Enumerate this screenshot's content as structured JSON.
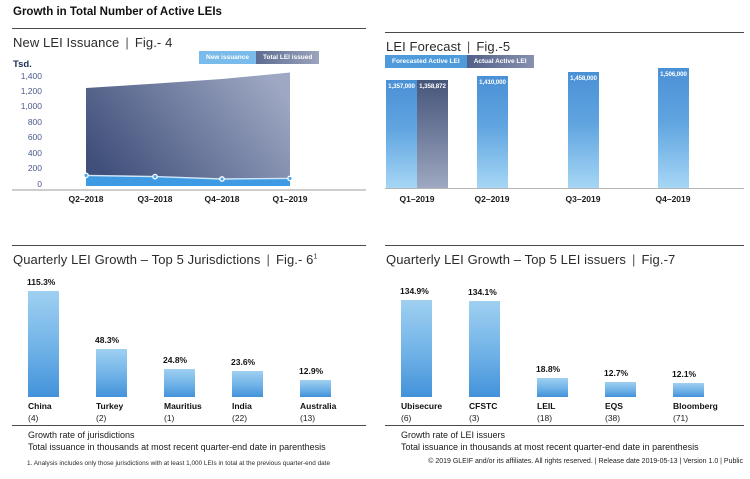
{
  "page": {
    "title": "Growth in Total Number of Active LEIs",
    "sep": "|",
    "footer": "© 2019 GLEIF and/or its affiliates. All rights reserved.  |  Release date 2019-05-13  |  Version 1.0  |  Public"
  },
  "chart_data": [
    {
      "id": "fig4",
      "type": "area",
      "title": "New LEI Issuance",
      "fig": "Fig.- 4",
      "unit": "Tsd.",
      "legend": [
        "New issuance",
        "Total LEI issued"
      ],
      "x": [
        "Q2–2018",
        "Q3–2018",
        "Q4–2018",
        "Q1–2019"
      ],
      "series": [
        {
          "name": "New issuance",
          "values": [
            98,
            83,
            52,
            60
          ]
        },
        {
          "name": "Total LEI issued",
          "values": [
            1232,
            1288,
            1348,
            1432
          ]
        }
      ],
      "ylim": [
        0,
        1400
      ],
      "y_ticks": [
        "0",
        "200",
        "400",
        "600",
        "800",
        "1,000",
        "1,200",
        "1,400"
      ],
      "values_unit": "thousands",
      "legend_position": "top-right",
      "grid": false
    },
    {
      "id": "fig5",
      "type": "bar",
      "title": "LEI Forecast",
      "fig": "Fig.-5",
      "legend": [
        "Forecasted Active LEI",
        "Actual Active LEI"
      ],
      "x": [
        "Q1–2019",
        "Q2–2019",
        "Q3–2019",
        "Q4–2019"
      ],
      "bars": [
        {
          "quarter": "Q1–2019",
          "series": "Forecasted Active LEI",
          "value": 1357000,
          "label": "1,357,000"
        },
        {
          "quarter": "Q1–2019",
          "series": "Actual Active LEI",
          "value": 1358872,
          "label": "1,358,872"
        },
        {
          "quarter": "Q2–2019",
          "series": "Forecasted Active LEI",
          "value": 1410000,
          "label": "1,410,000"
        },
        {
          "quarter": "Q3–2019",
          "series": "Forecasted Active LEI",
          "value": 1458000,
          "label": "1,458,000"
        },
        {
          "quarter": "Q4–2019",
          "series": "Forecasted Active LEI",
          "value": 1506000,
          "label": "1,506,000"
        }
      ],
      "legend_position": "top-left",
      "grid": false
    },
    {
      "id": "fig6",
      "type": "bar",
      "title": "Quarterly LEI Growth – Top 5 Jurisdictions",
      "fig": "Fig.- 6",
      "fig_sup": "1",
      "categories": [
        "China",
        "Turkey",
        "Mauritius",
        "India",
        "Australia"
      ],
      "totals": [
        "(4)",
        "(2)",
        "(1)",
        "(22)",
        "(13)"
      ],
      "values": [
        115.3,
        48.3,
        24.8,
        23.6,
        12.9
      ],
      "value_labels": [
        "115.3%",
        "48.3%",
        "24.8%",
        "23.6%",
        "12.9%"
      ],
      "notes": [
        "Growth rate of jurisdictions",
        "Total issuance in thousands at most recent quarter-end date in parenthesis"
      ],
      "footnote": "1. Analysis includes only those jurisdictions with at least 1,000 LEIs in total at the previous quarter-end date",
      "grid": false
    },
    {
      "id": "fig7",
      "type": "bar",
      "title": "Quarterly LEI Growth – Top 5 LEI issuers",
      "fig": "Fig.-7",
      "categories": [
        "Ubisecure",
        "CFSTC",
        "LEIL",
        "EQS",
        "Bloomberg"
      ],
      "totals": [
        "(6)",
        "(3)",
        "(18)",
        "(38)",
        "(71)"
      ],
      "values": [
        134.9,
        134.1,
        18.8,
        12.7,
        12.1
      ],
      "value_labels": [
        "134.9%",
        "134.1%",
        "18.8%",
        "12.7%",
        "12.1%"
      ],
      "notes": [
        "Growth rate of LEI issuers",
        "Total issuance in thousands at most recent quarter-end date in parenthesis"
      ],
      "grid": false
    }
  ],
  "colors": {
    "accent_light_blue": "#4E9ADA",
    "accent_sky": "#3E9AE2",
    "accent_slate": "#46557A",
    "axis_tick_blue": "#4A5A8C",
    "rule_gray": "#4a4a4a"
  }
}
